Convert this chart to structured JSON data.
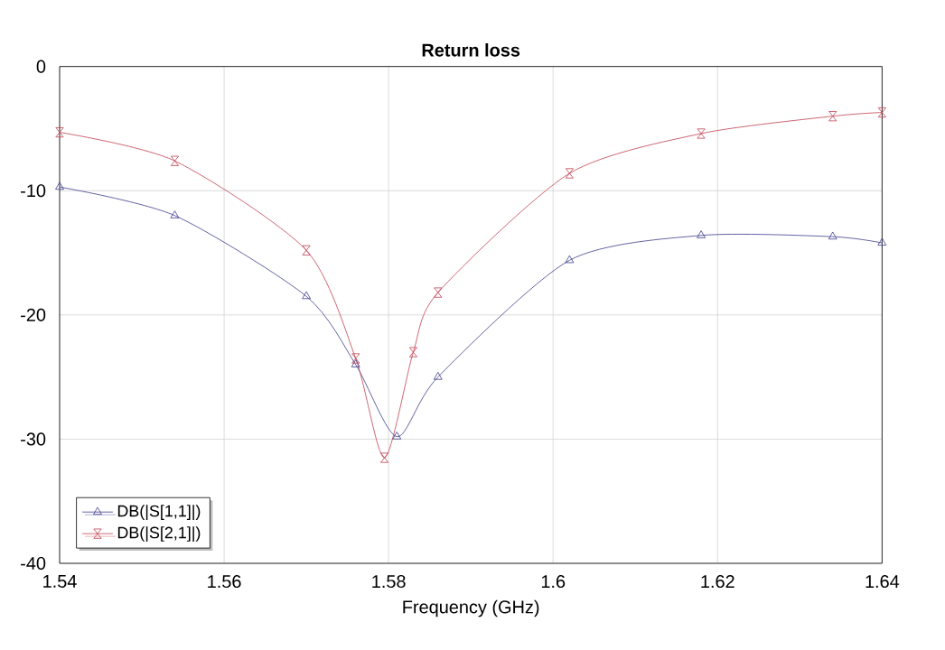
{
  "chart_data": {
    "type": "line",
    "title": "Return loss",
    "xlabel": "Frequency (GHz)",
    "xlim": [
      1.54,
      1.64
    ],
    "xticks": [
      1.54,
      1.56,
      1.58,
      1.6,
      1.62,
      1.64
    ],
    "ylim": [
      -40,
      0
    ],
    "yticks": [
      -40,
      -30,
      -20,
      -10,
      0
    ],
    "grid": true,
    "legend": "bottom left",
    "line_style": "solid",
    "series": [
      {
        "name": "DB(|S[1,1]|)",
        "color": "#3c3c8c",
        "marker": "triangle",
        "x": [
          1.54,
          1.554,
          1.57,
          1.576,
          1.581,
          1.586,
          1.602,
          1.618,
          1.634,
          1.64
        ],
        "values": [
          -9.7,
          -12.0,
          -18.5,
          -24,
          -29.8,
          -25,
          -15.6,
          -13.6,
          -13.7,
          -14.2
        ]
      },
      {
        "name": "DB(|S[2,1]|)",
        "color": "#c04050",
        "marker": "cross",
        "x": [
          1.54,
          1.554,
          1.57,
          1.576,
          1.5795,
          1.583,
          1.586,
          1.602,
          1.618,
          1.634,
          1.64
        ],
        "values": [
          -5.3,
          -7.6,
          -14.8,
          -23.5,
          -31.5,
          -23,
          -18.2,
          -8.6,
          -5.4,
          -4.0,
          -3.7
        ]
      }
    ]
  }
}
